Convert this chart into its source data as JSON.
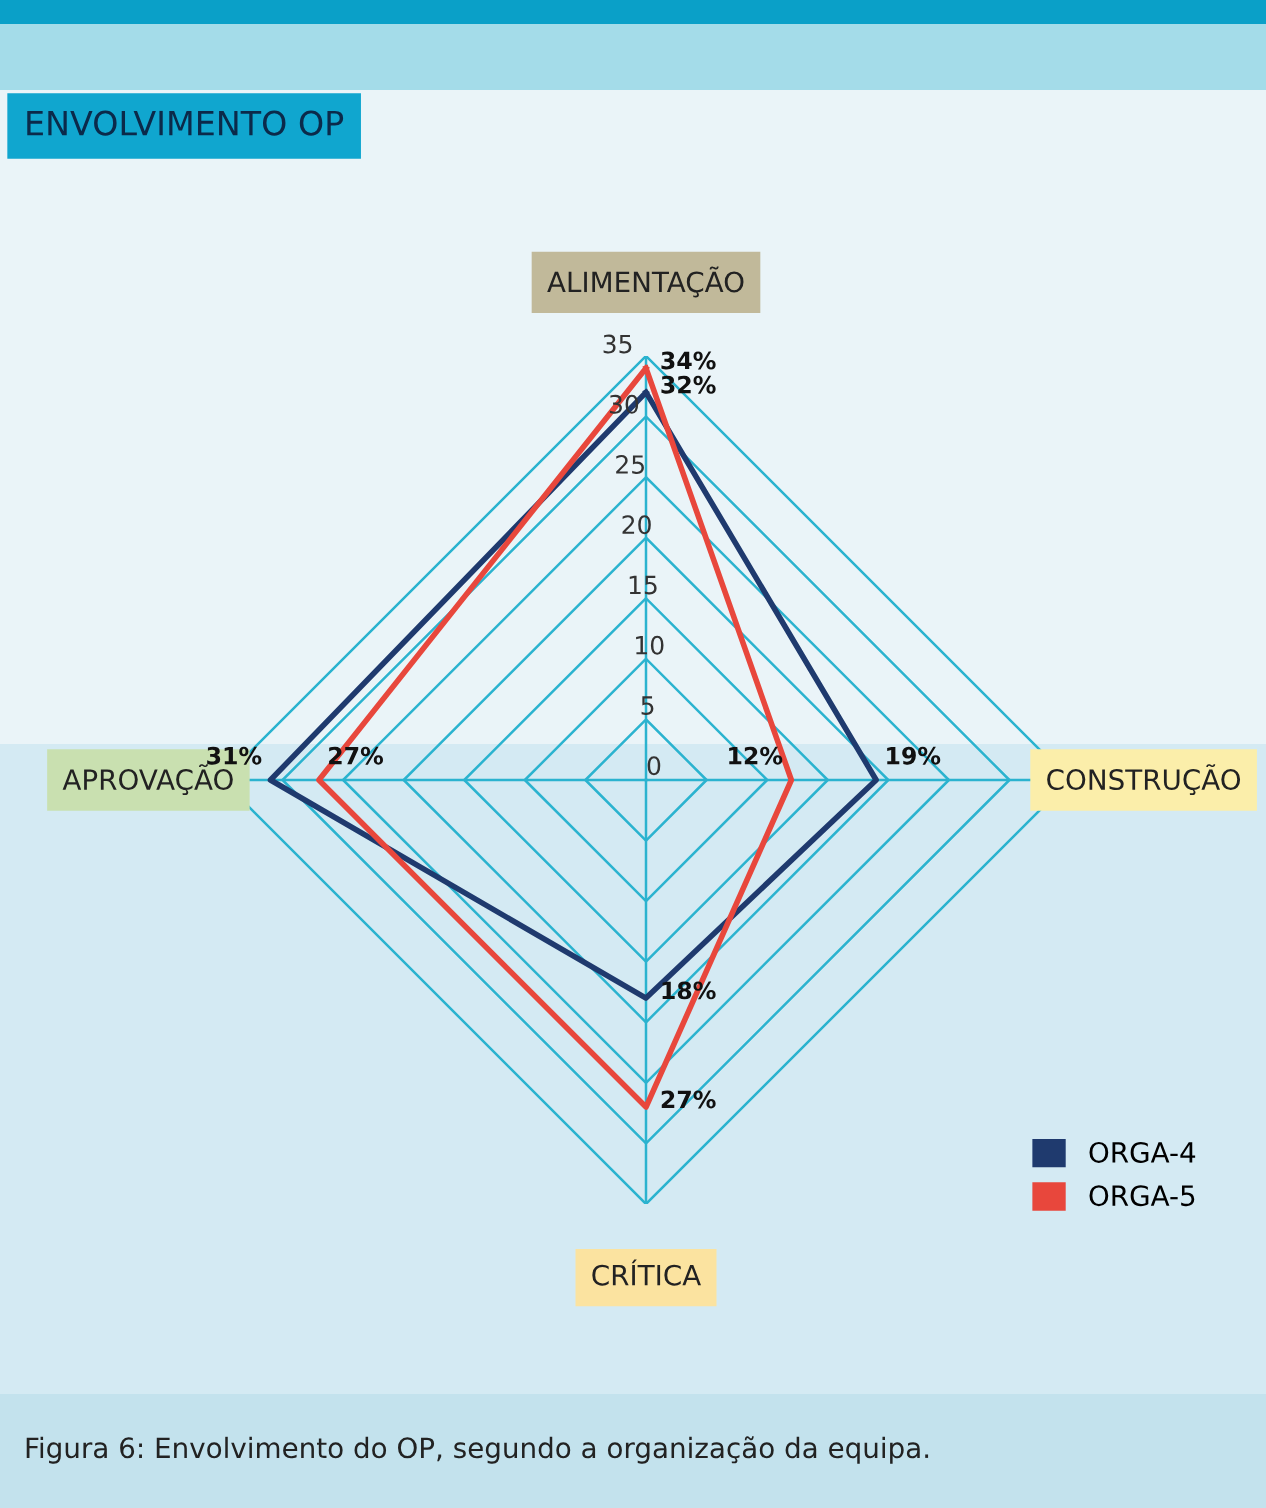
{
  "chart_data": {
    "type": "radar",
    "title": "ENVOLVIMENTO OP",
    "annotations": [
      "Figura 6: Envolvimento do OP, segundo a organização da equipa."
    ],
    "categories": [
      "ALIMENTAÇÃO",
      "CONSTRUÇÃO",
      "CRÍTICA",
      "APROVAÇÃO"
    ],
    "ylim": [
      0,
      35
    ],
    "yticks": [
      0,
      5,
      10,
      15,
      20,
      25,
      30,
      35
    ],
    "legend": "bottom right",
    "grid": true,
    "marker": "none",
    "series": [
      {
        "name": "ORGA-4",
        "color": "#1f3a6e",
        "values": [
          32,
          19,
          18,
          31
        ],
        "value_labels": [
          "32%",
          "19%",
          "18%",
          "31%"
        ]
      },
      {
        "name": "ORGA-5",
        "color": "#e8473c",
        "values": [
          34,
          12,
          27,
          27
        ],
        "value_labels": [
          "34%",
          "12%",
          "27%",
          "27%"
        ]
      }
    ]
  }
}
